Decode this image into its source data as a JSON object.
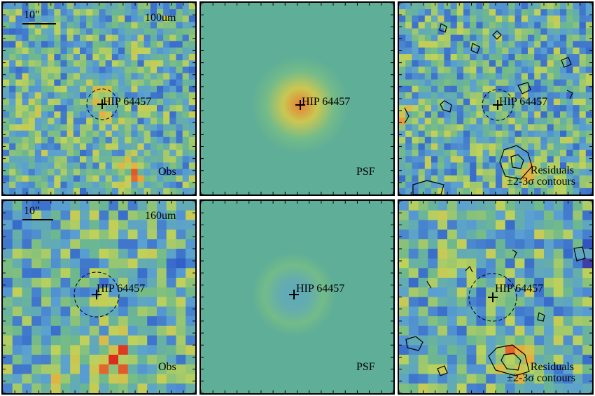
{
  "target": {
    "name": "HIP 64457"
  },
  "scale_label": "10\"",
  "rows": [
    {
      "band": "100um",
      "panels": [
        {
          "caption": "Obs"
        },
        {
          "caption": "PSF"
        },
        {
          "caption_line1": "Residuals",
          "caption_line2": "±2-3σ contours"
        }
      ]
    },
    {
      "band": "160um",
      "panels": [
        {
          "caption": "Obs"
        },
        {
          "caption": "PSF"
        },
        {
          "caption_line1": "Residuals",
          "caption_line2": "±2-3σ contours"
        }
      ]
    }
  ],
  "colors": {
    "psf_background": "#5fae97",
    "frame": "#000000"
  }
}
